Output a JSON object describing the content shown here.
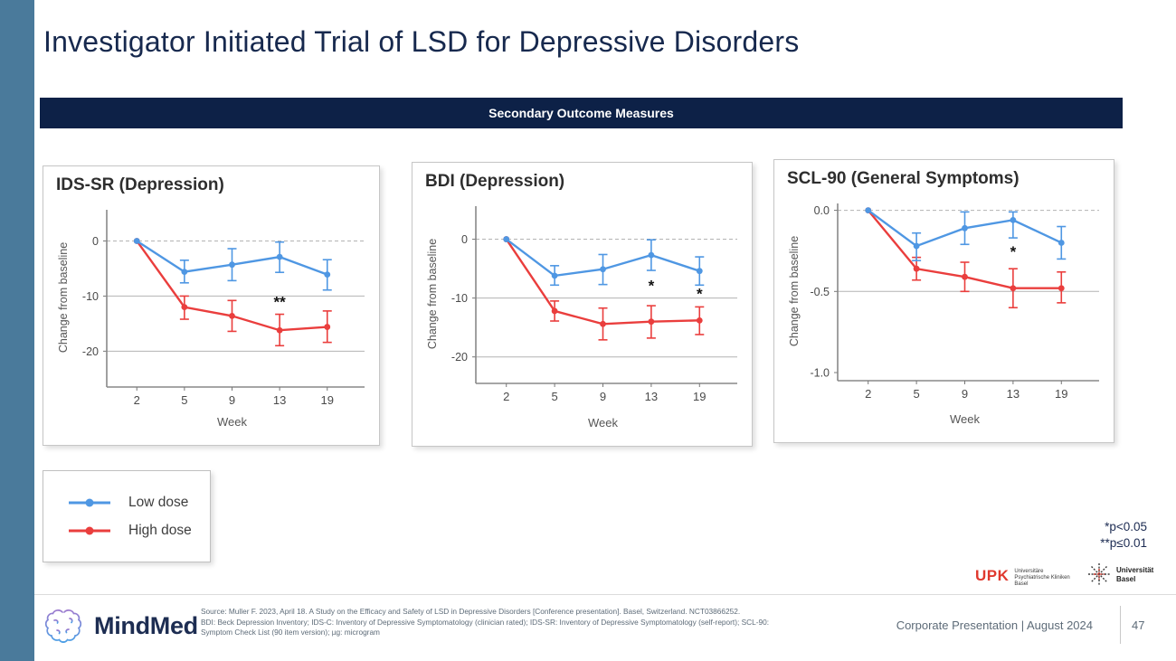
{
  "slide": {
    "title": "Investigator Initiated Trial of LSD for Depressive Disorders",
    "banner": "Secondary Outcome Measures",
    "footer_right": "Corporate Presentation | August 2024",
    "page_number": "47"
  },
  "legend": {
    "items": [
      {
        "label": "Low dose",
        "color": "#4f97e3"
      },
      {
        "label": "High dose",
        "color": "#ea3e3d"
      }
    ]
  },
  "significance": {
    "line1": "*p<0.05",
    "line2": "**p≤0.01"
  },
  "logos": {
    "mindmed": "MindMed",
    "upk": {
      "abbr": "UPK",
      "lines": [
        "Universitäre",
        "Psychiatrische Kliniken",
        "Basel"
      ]
    },
    "unibas": {
      "lines": [
        "Universität",
        "Basel"
      ]
    }
  },
  "source": {
    "lines": [
      "Source: Muller F. 2023, April 18. A Study on the Efficacy and Safety of LSD in Depressive Disorders [Conference presentation]. Basel, Switzerland. NCT03866252.",
      "BDI: Beck Depression Inventory; IDS-C: Inventory of Depressive Symptomatology (clinician rated); IDS-SR: Inventory of Depressive Symptomatology (self-report); SCL-90:",
      "Symptom Check List (90 item version); µg: microgram"
    ]
  },
  "chart_data": [
    {
      "type": "line",
      "title": "IDS-SR (Depression)",
      "xlabel": "Week",
      "ylabel": "Change from baseline",
      "categories": [
        2,
        5,
        9,
        13,
        19
      ],
      "ylim": [
        5,
        -26.5
      ],
      "yticks": [
        {
          "v": 0,
          "label": "0"
        },
        {
          "v": -10,
          "label": "-10"
        },
        {
          "v": -20,
          "label": "-20"
        }
      ],
      "series": [
        {
          "name": "Low dose",
          "color": "#4f97e3",
          "values": [
            0,
            -5.6,
            -4.3,
            -2.9,
            -6.1
          ],
          "err_high": [
            null,
            -3.5,
            -1.4,
            -0.2,
            -3.4
          ],
          "err_low": [
            null,
            -7.6,
            -7.2,
            -5.7,
            -8.9
          ]
        },
        {
          "name": "High dose",
          "color": "#ea3e3d",
          "values": [
            0,
            -12.0,
            -13.6,
            -16.2,
            -15.6
          ],
          "err_high": [
            null,
            -10.0,
            -10.8,
            -13.3,
            -12.7
          ],
          "err_low": [
            null,
            -14.2,
            -16.4,
            -19.0,
            -18.4
          ]
        }
      ],
      "annotations": [
        {
          "xi": 3,
          "x": 13,
          "y": -11.2,
          "text": "**"
        }
      ]
    },
    {
      "type": "line",
      "title": "BDI (Depression)",
      "xlabel": "Week",
      "ylabel": "Change from baseline",
      "categories": [
        2,
        5,
        9,
        13,
        19
      ],
      "ylim": [
        5,
        -24.5
      ],
      "yticks": [
        {
          "v": 0,
          "label": "0"
        },
        {
          "v": -10,
          "label": "-10"
        },
        {
          "v": -20,
          "label": "-20"
        }
      ],
      "series": [
        {
          "name": "Low dose",
          "color": "#4f97e3",
          "values": [
            0,
            -6.2,
            -5.1,
            -2.7,
            -5.4
          ],
          "err_high": [
            null,
            -4.5,
            -2.6,
            -0.1,
            -3.0
          ],
          "err_low": [
            null,
            -7.8,
            -7.7,
            -5.3,
            -7.8
          ]
        },
        {
          "name": "High dose",
          "color": "#ea3e3d",
          "values": [
            0,
            -12.2,
            -14.4,
            -14.0,
            -13.8
          ],
          "err_high": [
            null,
            -10.5,
            -11.7,
            -11.3,
            -11.5
          ],
          "err_low": [
            null,
            -13.9,
            -17.1,
            -16.8,
            -16.2
          ]
        }
      ],
      "annotations": [
        {
          "xi": 3,
          "x": 13,
          "y": -8.0,
          "text": "*"
        },
        {
          "xi": 4,
          "x": 19,
          "y": -9.4,
          "text": "*"
        }
      ]
    },
    {
      "type": "line",
      "title": "SCL-90 (General Symptoms)",
      "xlabel": "Week",
      "ylabel": "Change from baseline",
      "categories": [
        2,
        5,
        9,
        13,
        19
      ],
      "ylim": [
        0.02,
        -1.05
      ],
      "yticks": [
        {
          "v": 0,
          "label": "0.0"
        },
        {
          "v": -0.5,
          "label": "-0.5"
        },
        {
          "v": -1.0,
          "label": "-1.0"
        }
      ],
      "series": [
        {
          "name": "Low dose",
          "color": "#4f97e3",
          "values": [
            0,
            -0.22,
            -0.11,
            -0.06,
            -0.2
          ],
          "err_high": [
            null,
            -0.14,
            -0.01,
            -0.01,
            -0.1
          ],
          "err_low": [
            null,
            -0.31,
            -0.21,
            -0.17,
            -0.3
          ]
        },
        {
          "name": "High dose",
          "color": "#ea3e3d",
          "values": [
            0,
            -0.36,
            -0.41,
            -0.48,
            -0.48
          ],
          "err_high": [
            null,
            -0.29,
            -0.32,
            -0.36,
            -0.38
          ],
          "err_low": [
            null,
            -0.43,
            -0.5,
            -0.6,
            -0.57
          ]
        }
      ],
      "annotations": [
        {
          "xi": 3,
          "x": 13,
          "y": -0.26,
          "text": "*"
        }
      ]
    }
  ]
}
